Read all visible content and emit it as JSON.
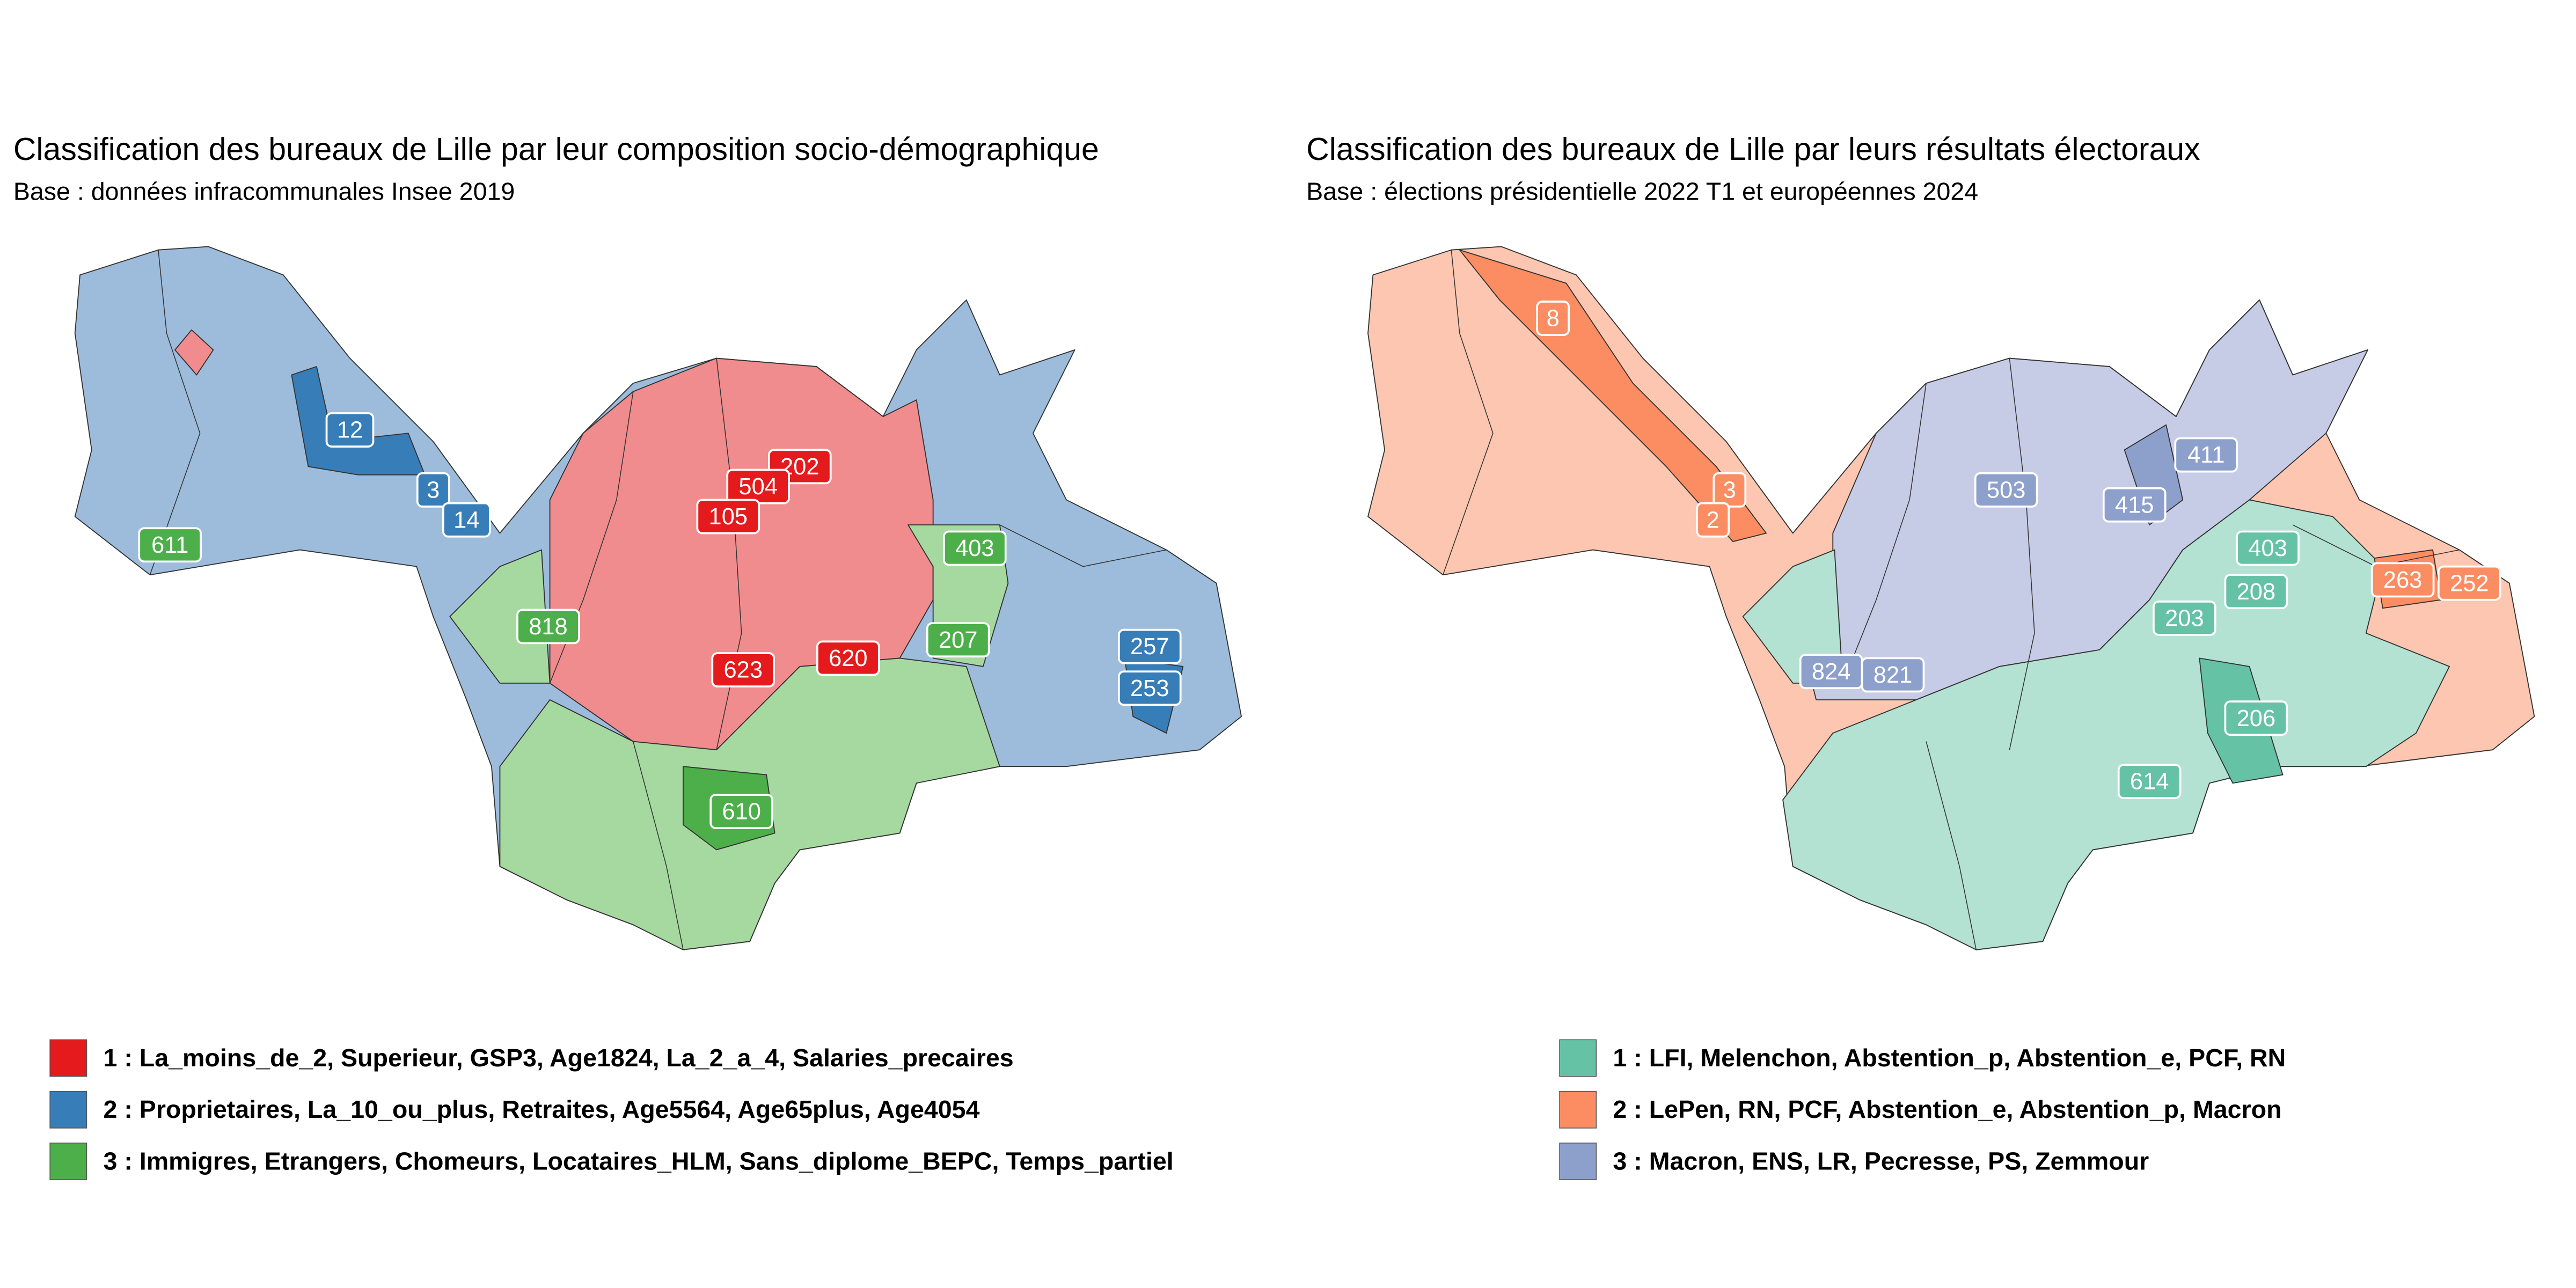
{
  "maps": [
    {
      "title": "Classification des bureaux de Lille par leur composition socio-démographique",
      "subtitle": "Base : données infracommunales Insee 2019",
      "legend": [
        {
          "label": "1 : La_moins_de_2, Superieur, GSP3, Age1824, La_2_a_4, Salaries_precaires",
          "color": "#e41a1c"
        },
        {
          "label": "2 : Proprietaires, La_10_ou_plus, Retraites, Age5564, Age65plus, Age4054",
          "color": "#377eb8"
        },
        {
          "label": "3 : Immigres, Etrangers, Chomeurs, Locataires_HLM, Sans_diplome_BEPC, Temps_partiel",
          "color": "#4daf4a"
        }
      ],
      "labels": [
        {
          "text": "12",
          "color": "#377eb8"
        },
        {
          "text": "3",
          "color": "#377eb8"
        },
        {
          "text": "14",
          "color": "#377eb8"
        },
        {
          "text": "611",
          "color": "#4daf4a"
        },
        {
          "text": "202",
          "color": "#e41a1c"
        },
        {
          "text": "504",
          "color": "#e41a1c"
        },
        {
          "text": "105",
          "color": "#e41a1c"
        },
        {
          "text": "403",
          "color": "#4daf4a"
        },
        {
          "text": "818",
          "color": "#4daf4a"
        },
        {
          "text": "207",
          "color": "#4daf4a"
        },
        {
          "text": "257",
          "color": "#377eb8"
        },
        {
          "text": "623",
          "color": "#e41a1c"
        },
        {
          "text": "620",
          "color": "#e41a1c"
        },
        {
          "text": "253",
          "color": "#377eb8"
        },
        {
          "text": "610",
          "color": "#4daf4a"
        }
      ]
    },
    {
      "title": "Classification des bureaux de Lille par leurs résultats électoraux",
      "subtitle": "Base : élections présidentielle 2022 T1 et européennes 2024",
      "legend": [
        {
          "label": "1 : LFI, Melenchon, Abstention_p, Abstention_e, PCF, RN",
          "color": "#66c2a5"
        },
        {
          "label": "2 : LePen, RN, PCF, Abstention_e, Abstention_p, Macron",
          "color": "#fc8d62"
        },
        {
          "label": "3 : Macron, ENS, LR, Pecresse, PS, Zemmour",
          "color": "#8da0cb"
        }
      ],
      "labels": [
        {
          "text": "8",
          "color": "#fc8d62"
        },
        {
          "text": "3",
          "color": "#fc8d62"
        },
        {
          "text": "2",
          "color": "#fc8d62"
        },
        {
          "text": "411",
          "color": "#8da0cb"
        },
        {
          "text": "503",
          "color": "#8da0cb"
        },
        {
          "text": "415",
          "color": "#8da0cb"
        },
        {
          "text": "403",
          "color": "#66c2a5"
        },
        {
          "text": "208",
          "color": "#66c2a5"
        },
        {
          "text": "263",
          "color": "#fc8d62"
        },
        {
          "text": "252",
          "color": "#fc8d62"
        },
        {
          "text": "203",
          "color": "#66c2a5"
        },
        {
          "text": "824",
          "color": "#8da0cb"
        },
        {
          "text": "821",
          "color": "#8da0cb"
        },
        {
          "text": "206",
          "color": "#66c2a5"
        },
        {
          "text": "614",
          "color": "#66c2a5"
        }
      ]
    }
  ]
}
